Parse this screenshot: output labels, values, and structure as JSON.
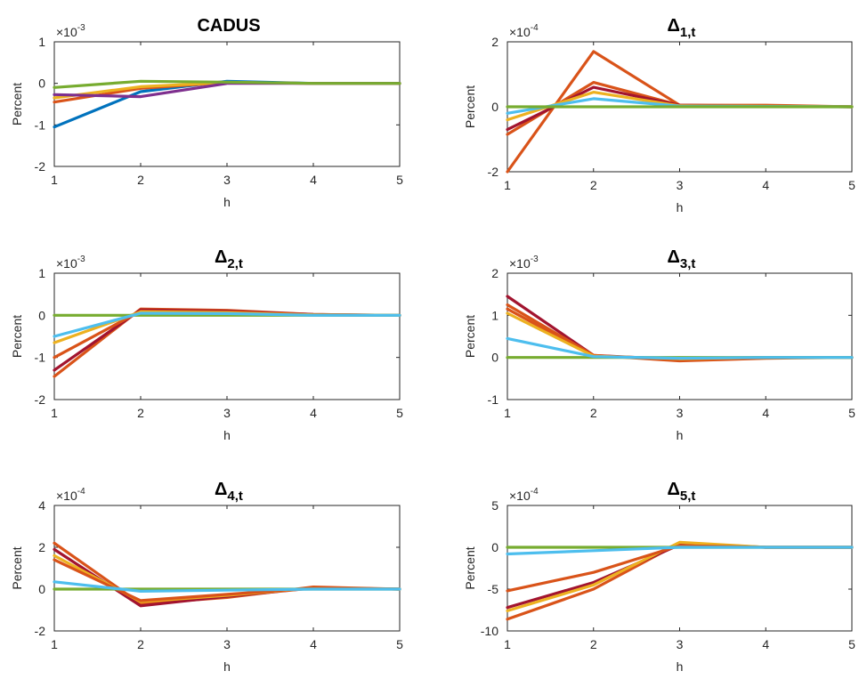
{
  "chart_data": [
    {
      "type": "line",
      "title": "CADUS",
      "title_main": "CADUS",
      "title_sub": "",
      "xlabel": "h",
      "ylabel": "Percent",
      "exponent": "-3",
      "exponent_base": "×10",
      "xlim": [
        1,
        5
      ],
      "ylim": [
        -2,
        1
      ],
      "xticks": [
        "1",
        "2",
        "3",
        "4",
        "5"
      ],
      "yticks": [
        "-2",
        "-1",
        "0",
        "1"
      ],
      "x": [
        1,
        2,
        3,
        4,
        5
      ],
      "series": [
        {
          "color": "#0072BD",
          "values": [
            -1.05,
            -0.2,
            0.05,
            0.0,
            0.0
          ]
        },
        {
          "color": "#D95319",
          "values": [
            -0.45,
            -0.12,
            0.02,
            0.0,
            0.0
          ]
        },
        {
          "color": "#EDB120",
          "values": [
            -0.35,
            -0.08,
            0.02,
            0.0,
            0.0
          ]
        },
        {
          "color": "#7E2F8E",
          "values": [
            -0.27,
            -0.32,
            0.0,
            0.0,
            0.0
          ]
        },
        {
          "color": "#77AC30",
          "values": [
            -0.1,
            0.05,
            0.03,
            0.0,
            0.0
          ]
        }
      ]
    },
    {
      "type": "line",
      "title": "Δ1,t",
      "title_main": "Δ",
      "title_sub": "1,t",
      "xlabel": "h",
      "ylabel": "Percent",
      "exponent": "-4",
      "exponent_base": "×10",
      "xlim": [
        1,
        5
      ],
      "ylim": [
        -2,
        2
      ],
      "xticks": [
        "1",
        "2",
        "3",
        "4",
        "5"
      ],
      "yticks": [
        "-2",
        "0",
        "2"
      ],
      "x": [
        1,
        2,
        3,
        4,
        5
      ],
      "series": [
        {
          "color": "#D95319",
          "values": [
            -2.0,
            1.7,
            0.05,
            0.05,
            0.0
          ]
        },
        {
          "color": "#D95319",
          "values": [
            -0.85,
            0.75,
            0.05,
            0.03,
            0.0
          ]
        },
        {
          "color": "#A2142F",
          "values": [
            -0.7,
            0.6,
            0.05,
            0.02,
            0.0
          ]
        },
        {
          "color": "#EDB120",
          "values": [
            -0.4,
            0.45,
            0.03,
            0.02,
            0.0
          ]
        },
        {
          "color": "#4DBEEE",
          "values": [
            -0.2,
            0.25,
            0.02,
            0.01,
            0.0
          ]
        },
        {
          "color": "#77AC30",
          "values": [
            0.0,
            0.0,
            0.0,
            0.0,
            0.0
          ]
        }
      ]
    },
    {
      "type": "line",
      "title": "Δ2,t",
      "title_main": "Δ",
      "title_sub": "2,t",
      "xlabel": "h",
      "ylabel": "Percent",
      "exponent": "-3",
      "exponent_base": "×10",
      "xlim": [
        1,
        5
      ],
      "ylim": [
        -2,
        1
      ],
      "xticks": [
        "1",
        "2",
        "3",
        "4",
        "5"
      ],
      "yticks": [
        "-2",
        "-1",
        "0",
        "1"
      ],
      "x": [
        1,
        2,
        3,
        4,
        5
      ],
      "series": [
        {
          "color": "#D95319",
          "values": [
            -1.45,
            0.15,
            0.12,
            0.02,
            0.0
          ]
        },
        {
          "color": "#A2142F",
          "values": [
            -1.3,
            0.13,
            0.1,
            0.02,
            0.0
          ]
        },
        {
          "color": "#D95319",
          "values": [
            -1.0,
            0.1,
            0.08,
            0.01,
            0.0
          ]
        },
        {
          "color": "#EDB120",
          "values": [
            -0.65,
            0.08,
            0.06,
            0.01,
            0.0
          ]
        },
        {
          "color": "#77AC30",
          "values": [
            0.0,
            0.0,
            0.0,
            0.0,
            0.0
          ]
        },
        {
          "color": "#4DBEEE",
          "values": [
            -0.5,
            0.05,
            0.04,
            0.0,
            0.0
          ]
        }
      ]
    },
    {
      "type": "line",
      "title": "Δ3,t",
      "title_main": "Δ",
      "title_sub": "3,t",
      "xlabel": "h",
      "ylabel": "Percent",
      "exponent": "-3",
      "exponent_base": "×10",
      "xlim": [
        1,
        5
      ],
      "ylim": [
        -1,
        2
      ],
      "xticks": [
        "1",
        "2",
        "3",
        "4",
        "5"
      ],
      "yticks": [
        "-1",
        "0",
        "1",
        "2"
      ],
      "x": [
        1,
        2,
        3,
        4,
        5
      ],
      "series": [
        {
          "color": "#A2142F",
          "values": [
            1.45,
            0.05,
            -0.05,
            0.0,
            0.0
          ]
        },
        {
          "color": "#D95319",
          "values": [
            1.25,
            0.05,
            -0.08,
            -0.02,
            0.0
          ]
        },
        {
          "color": "#D95319",
          "values": [
            1.15,
            0.04,
            -0.05,
            0.0,
            0.0
          ]
        },
        {
          "color": "#EDB120",
          "values": [
            1.05,
            0.03,
            -0.03,
            0.0,
            0.0
          ]
        },
        {
          "color": "#77AC30",
          "values": [
            0.0,
            0.0,
            0.0,
            0.0,
            0.0
          ]
        },
        {
          "color": "#4DBEEE",
          "values": [
            0.45,
            0.02,
            -0.02,
            0.0,
            0.0
          ]
        }
      ]
    },
    {
      "type": "line",
      "title": "Δ4,t",
      "title_main": "Δ",
      "title_sub": "4,t",
      "xlabel": "h",
      "ylabel": "Percent",
      "exponent": "-4",
      "exponent_base": "×10",
      "xlim": [
        1,
        5
      ],
      "ylim": [
        -2,
        4
      ],
      "xticks": [
        "1",
        "2",
        "3",
        "4",
        "5"
      ],
      "yticks": [
        "-2",
        "0",
        "2",
        "4"
      ],
      "x": [
        1,
        2,
        3,
        4,
        5
      ],
      "series": [
        {
          "color": "#D95319",
          "values": [
            2.2,
            -0.7,
            -0.4,
            0.1,
            0.0
          ]
        },
        {
          "color": "#A2142F",
          "values": [
            1.9,
            -0.8,
            -0.35,
            0.05,
            0.0
          ]
        },
        {
          "color": "#EDB120",
          "values": [
            1.6,
            -0.6,
            -0.3,
            0.05,
            0.0
          ]
        },
        {
          "color": "#D95319",
          "values": [
            1.4,
            -0.55,
            -0.25,
            0.05,
            0.0
          ]
        },
        {
          "color": "#77AC30",
          "values": [
            0.0,
            0.0,
            0.0,
            0.0,
            0.0
          ]
        },
        {
          "color": "#4DBEEE",
          "values": [
            0.35,
            -0.1,
            -0.05,
            0.0,
            0.0
          ]
        }
      ]
    },
    {
      "type": "line",
      "title": "Δ5,t",
      "title_main": "Δ",
      "title_sub": "5,t",
      "xlabel": "h",
      "ylabel": "Percent",
      "exponent": "-4",
      "exponent_base": "×10",
      "xlim": [
        1,
        5
      ],
      "ylim": [
        -10,
        5
      ],
      "xticks": [
        "1",
        "2",
        "3",
        "4",
        "5"
      ],
      "yticks": [
        "-10",
        "-5",
        "0",
        "5"
      ],
      "x": [
        1,
        2,
        3,
        4,
        5
      ],
      "series": [
        {
          "color": "#D95319",
          "values": [
            -8.6,
            -5.0,
            0.5,
            0.0,
            0.0
          ]
        },
        {
          "color": "#A2142F",
          "values": [
            -7.2,
            -4.2,
            0.3,
            0.0,
            0.0
          ]
        },
        {
          "color": "#EDB120",
          "values": [
            -7.6,
            -4.5,
            0.6,
            0.0,
            0.0
          ]
        },
        {
          "color": "#D95319",
          "values": [
            -5.2,
            -3.0,
            0.2,
            0.0,
            0.0
          ]
        },
        {
          "color": "#77AC30",
          "values": [
            0.0,
            0.0,
            0.0,
            0.0,
            0.0
          ]
        },
        {
          "color": "#4DBEEE",
          "values": [
            -0.8,
            -0.4,
            0.0,
            0.0,
            0.0
          ]
        }
      ]
    }
  ]
}
